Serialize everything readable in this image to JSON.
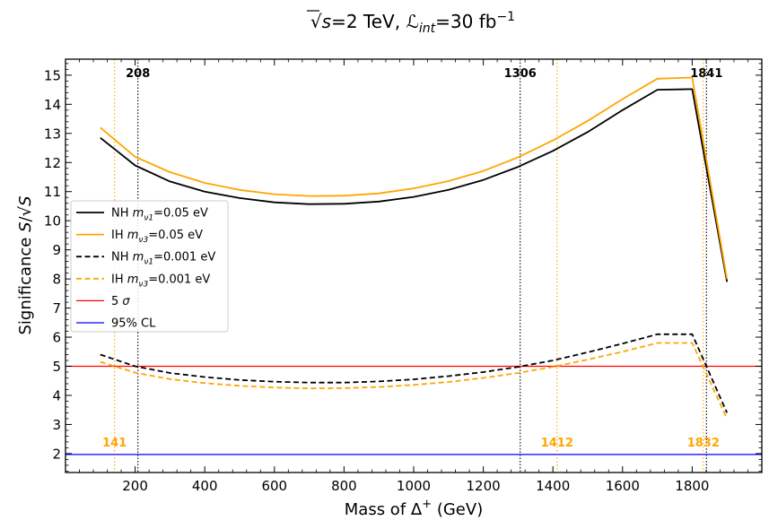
{
  "chart_data": {
    "type": "line",
    "title": "√s=2 TeV, ℒint=30 fb⁻¹",
    "xlabel": "Mass of Δ⁺ (GeV)",
    "ylabel": "Significance S/√S",
    "xlim": [
      0,
      2000
    ],
    "ylim": [
      1.35,
      15.55
    ],
    "xticks": [
      200,
      400,
      600,
      800,
      1000,
      1200,
      1400,
      1600,
      1800
    ],
    "yticks": [
      2,
      3,
      4,
      5,
      6,
      7,
      8,
      9,
      10,
      11,
      12,
      13,
      14,
      15
    ],
    "legend_position": "center-left",
    "x": [
      100,
      200,
      300,
      400,
      500,
      600,
      700,
      800,
      900,
      1000,
      1100,
      1200,
      1300,
      1400,
      1500,
      1600,
      1700,
      1800,
      1900
    ],
    "series": [
      {
        "name": "NH mν1=0.05 eV",
        "label_main": "NH ",
        "label_sym": "m",
        "label_sub": "ν1",
        "label_val": "=0.05 eV",
        "color": "#000000",
        "dash": "solid",
        "values": [
          12.85,
          11.9,
          11.35,
          11.0,
          10.78,
          10.63,
          10.57,
          10.58,
          10.66,
          10.82,
          11.06,
          11.4,
          11.85,
          12.4,
          13.05,
          13.8,
          14.5,
          14.52,
          7.9
        ]
      },
      {
        "name": "IH mν3=0.05 eV",
        "label_main": "IH ",
        "label_sym": "m",
        "label_sub": "ν3",
        "label_val": "=0.05 eV",
        "color": "#ffa500",
        "dash": "solid",
        "values": [
          13.2,
          12.2,
          11.67,
          11.3,
          11.06,
          10.91,
          10.85,
          10.86,
          10.94,
          11.11,
          11.36,
          11.71,
          12.18,
          12.76,
          13.43,
          14.18,
          14.88,
          14.92,
          8.0
        ]
      },
      {
        "name": "NH mν1=0.001 eV",
        "label_main": "NH ",
        "label_sym": "m",
        "label_sub": "ν1",
        "label_val": "=0.001 eV",
        "color": "#000000",
        "dash": "dashed",
        "values": [
          5.4,
          5.0,
          4.77,
          4.63,
          4.53,
          4.47,
          4.44,
          4.44,
          4.48,
          4.55,
          4.66,
          4.8,
          4.98,
          5.2,
          5.48,
          5.78,
          6.1,
          6.1,
          3.4
        ]
      },
      {
        "name": "IH mν3=0.001 eV",
        "label_main": "IH ",
        "label_sym": "m",
        "label_sub": "ν3",
        "label_val": "=0.001 eV",
        "color": "#ffa500",
        "dash": "dashed",
        "values": [
          5.15,
          4.78,
          4.56,
          4.42,
          4.33,
          4.27,
          4.24,
          4.25,
          4.29,
          4.36,
          4.46,
          4.6,
          4.77,
          4.98,
          5.23,
          5.5,
          5.8,
          5.8,
          3.2
        ]
      }
    ],
    "hlines": [
      {
        "name": "5 σ",
        "label_main": "5 ",
        "label_sym": "σ",
        "y": 5.0,
        "color": "#ff0000"
      },
      {
        "name": "95% CL",
        "label_main": "95% CL",
        "label_sym": "",
        "y": 1.97,
        "color": "#0000ff"
      }
    ],
    "vlines": [
      {
        "x": 208,
        "label": "208",
        "color": "#000000",
        "label_position": "top"
      },
      {
        "x": 1306,
        "label": "1306",
        "color": "#000000",
        "label_position": "top"
      },
      {
        "x": 1841,
        "label": "1841",
        "color": "#000000",
        "label_position": "top"
      },
      {
        "x": 141,
        "label": "141",
        "color": "#ffa500",
        "label_position": "bottom"
      },
      {
        "x": 1412,
        "label": "1412",
        "color": "#ffa500",
        "label_position": "bottom"
      },
      {
        "x": 1832,
        "label": "1832",
        "color": "#ffa500",
        "label_position": "bottom"
      }
    ]
  }
}
